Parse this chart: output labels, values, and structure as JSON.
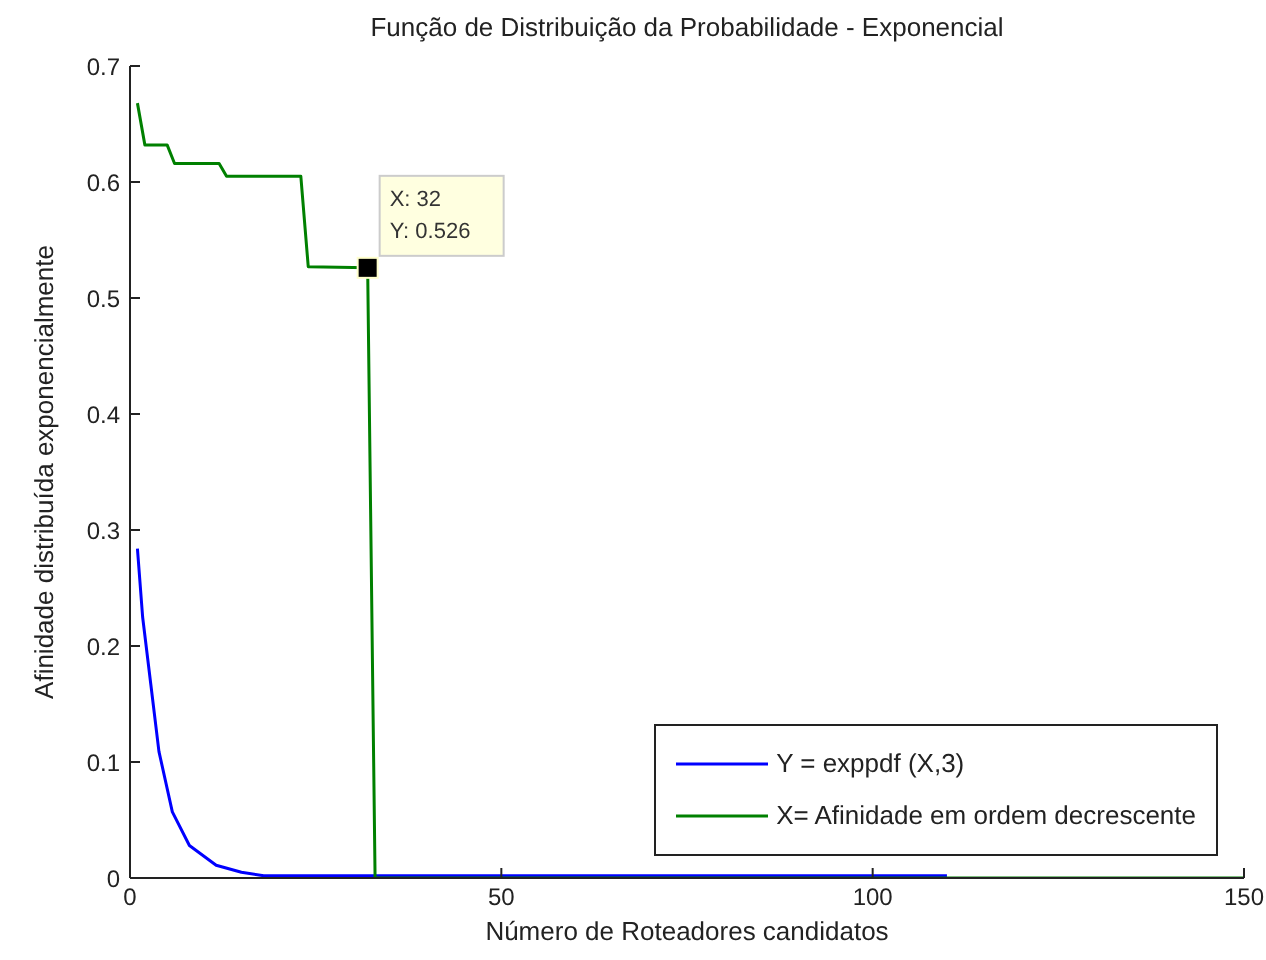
{
  "chart_data": {
    "type": "line",
    "title": "Função de Distribuição da Probabilidade - Exponencial",
    "xlabel": "Número de Roteadores candidatos",
    "ylabel": "Afinidade distribuída exponencialmente",
    "series": [
      {
        "name": "Y = exppdf (X,3)",
        "color": "#0000ff",
        "x": [
          1,
          1.7,
          2.8,
          3.9,
          5.7,
          8,
          11.6,
          15,
          18,
          110
        ],
        "values": [
          0.284,
          0.225,
          0.167,
          0.109,
          0.057,
          0.028,
          0.011,
          0.005,
          0.002,
          0.002
        ]
      },
      {
        "name": "X= Afinidade em ordem decrescente",
        "color": "#008000",
        "x": [
          1,
          2,
          5,
          6,
          12,
          13,
          23,
          24,
          32,
          33,
          150
        ],
        "values": [
          0.668,
          0.632,
          0.632,
          0.616,
          0.616,
          0.605,
          0.605,
          0.527,
          0.526,
          0,
          0
        ]
      }
    ],
    "xlim": [
      0,
      150
    ],
    "xticks": [
      0,
      50,
      100,
      150
    ],
    "ylim": [
      0,
      0.7
    ],
    "yticks": [
      0,
      0.1,
      0.2,
      0.3,
      0.4,
      0.5,
      0.6,
      0.7
    ],
    "annotations": [
      {
        "text": "X: 32\nY: 0.526",
        "x": 32,
        "y": 0.526
      }
    ],
    "grid": false,
    "legend": "bottom right",
    "marker": "none",
    "line_style": "solid"
  }
}
